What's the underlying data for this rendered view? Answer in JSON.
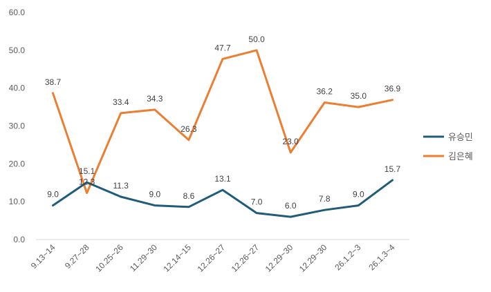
{
  "chart_data": {
    "type": "line",
    "title": "",
    "xlabel": "",
    "ylabel": "",
    "ylim": [
      0,
      60
    ],
    "yticks": [
      "0.0",
      "10.0",
      "20.0",
      "30.0",
      "40.0",
      "50.0",
      "60.0"
    ],
    "grid": false,
    "legend": "right",
    "categories": [
      "9.13~14",
      "9.27~28",
      "10.25~26",
      "11.29~30",
      "12.14~15",
      "12.26~27",
      "12.26~27",
      "12.29~30",
      "12.29~30",
      "26.1.2~3",
      "26.1.3~4"
    ],
    "series": [
      {
        "name": "유승민",
        "color": "#1f5c7a",
        "values": [
          9.0,
          15.1,
          11.3,
          9.0,
          8.6,
          13.1,
          7.0,
          6.0,
          7.8,
          9.0,
          15.7
        ],
        "labels": [
          "9.0",
          "15.1",
          "11.3",
          "9.0",
          "8.6",
          "13.1",
          "7.0",
          "6.0",
          "7.8",
          "9.0",
          "15.7"
        ]
      },
      {
        "name": "김은혜",
        "color": "#ed7d31",
        "values": [
          38.7,
          12.3,
          33.4,
          34.3,
          26.3,
          47.7,
          50.0,
          23.0,
          36.2,
          35.0,
          36.9
        ],
        "labels": [
          "38.7",
          "12.3",
          "33.4",
          "34.3",
          "26.3",
          "47.7",
          "50.0",
          "23.0",
          "36.2",
          "35.0",
          "36.9"
        ]
      }
    ]
  }
}
